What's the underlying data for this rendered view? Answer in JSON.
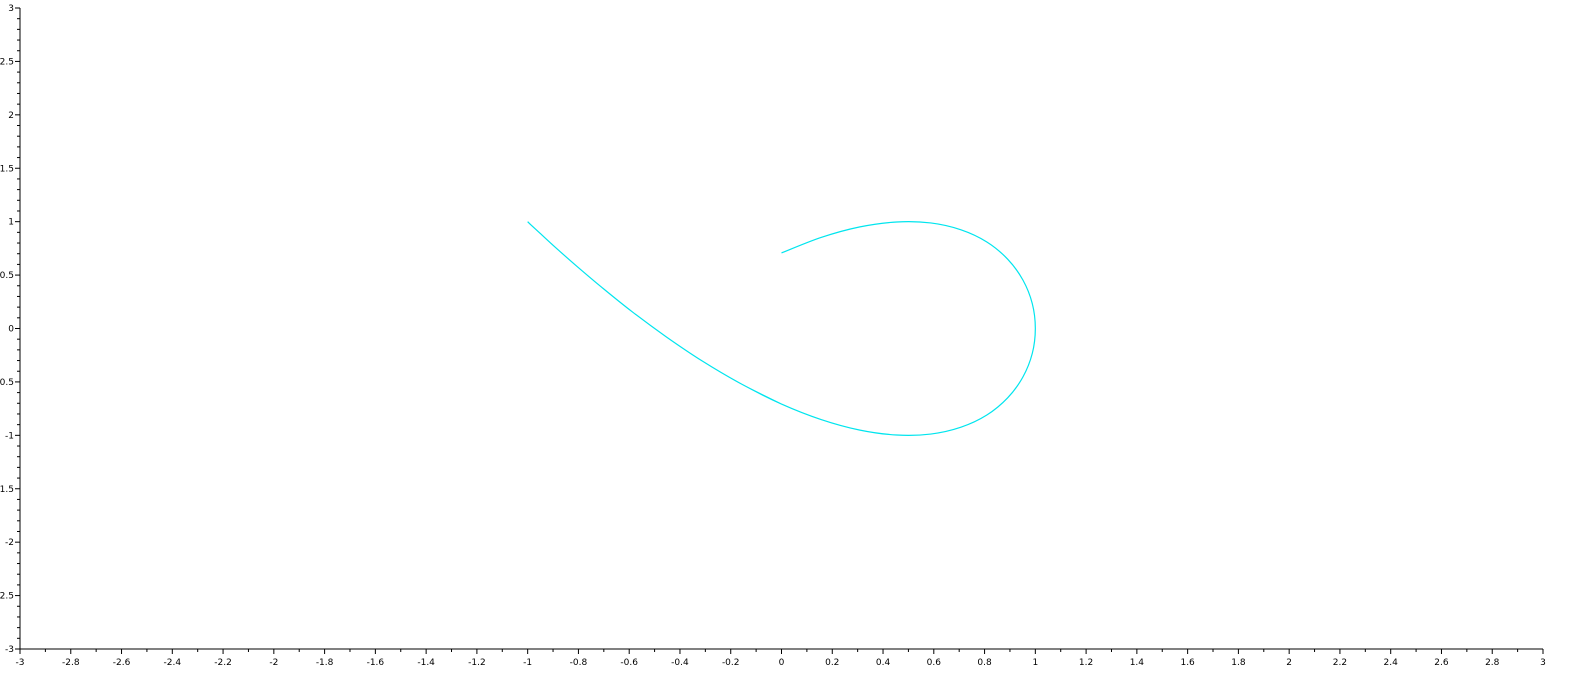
{
  "chart_data": {
    "type": "line",
    "title": "",
    "xlabel": "",
    "ylabel": "",
    "xlim": [
      -3,
      3
    ],
    "ylim": [
      -3,
      3
    ],
    "grid": false,
    "legend": "none",
    "x_ticks": [
      -3,
      -2.8,
      -2.6,
      -2.4,
      -2.2,
      -2,
      -1.8,
      -1.6,
      -1.4,
      -1.2,
      -1,
      -0.8,
      -0.6,
      -0.4,
      -0.2,
      0,
      0.2,
      0.4,
      0.6,
      0.8,
      1,
      1.2,
      1.4,
      1.6,
      1.8,
      2,
      2.2,
      2.4,
      2.6,
      2.8,
      3
    ],
    "x_tick_labels": [
      "-3",
      "-2.8",
      "-2.6",
      "-2.4",
      "-2.2",
      "-2",
      "-1.8",
      "-1.6",
      "-1.4",
      "-1.2",
      "-1",
      "-0.8",
      "-0.6",
      "-0.4",
      "-0.2",
      "0",
      "0.2",
      "0.4",
      "0.6",
      "0.8",
      "1",
      "1.2",
      "1.4",
      "1.6",
      "1.8",
      "2",
      "2.2",
      "2.4",
      "2.6",
      "2.8",
      "3"
    ],
    "y_ticks": [
      3,
      2.5,
      2,
      1.5,
      1,
      0.5,
      0,
      -0.5,
      -1,
      -1.5,
      -2,
      -2.5,
      -3
    ],
    "y_tick_labels": [
      "3",
      "2.5",
      "2",
      "1.5",
      "1",
      "0.5",
      "0",
      "-0.5",
      "-1",
      "-1.5",
      "-2",
      "-2.5",
      "-3"
    ],
    "series": [
      {
        "color": "#00e5ee",
        "x": [
          0,
          0.156,
          0.309,
          0.454,
          0.588,
          0.707,
          0.809,
          0.891,
          0.951,
          0.988,
          1,
          0.988,
          0.951,
          0.891,
          0.809,
          0.707,
          0.588,
          0.454,
          0.309,
          0.156,
          0,
          -0.156,
          -0.309,
          -0.454,
          -0.588,
          -0.707,
          -0.809,
          -0.891,
          -0.951,
          -0.988,
          -1,
          -0.988,
          -0.951,
          -0.891,
          -0.809,
          -0.707,
          -0.588,
          -0.454,
          -0.309,
          -0.156,
          0
        ],
        "y": [
          0.707,
          0.852,
          0.951,
          0.997,
          0.988,
          0.924,
          0.81,
          0.649,
          0.454,
          0.233,
          0,
          -0.233,
          -0.454,
          -0.649,
          -0.81,
          -0.924,
          -0.988,
          -0.997,
          -0.951,
          -0.852,
          -0.707,
          -0.522,
          -0.309,
          -0.078,
          0.156,
          0.383,
          0.588,
          0.76,
          0.891,
          0.972,
          1,
          0.972,
          0.891,
          0.76,
          0.588,
          0.383,
          0.156,
          -0.078,
          -0.309,
          -0.522,
          -0.707
        ]
      }
    ]
  }
}
